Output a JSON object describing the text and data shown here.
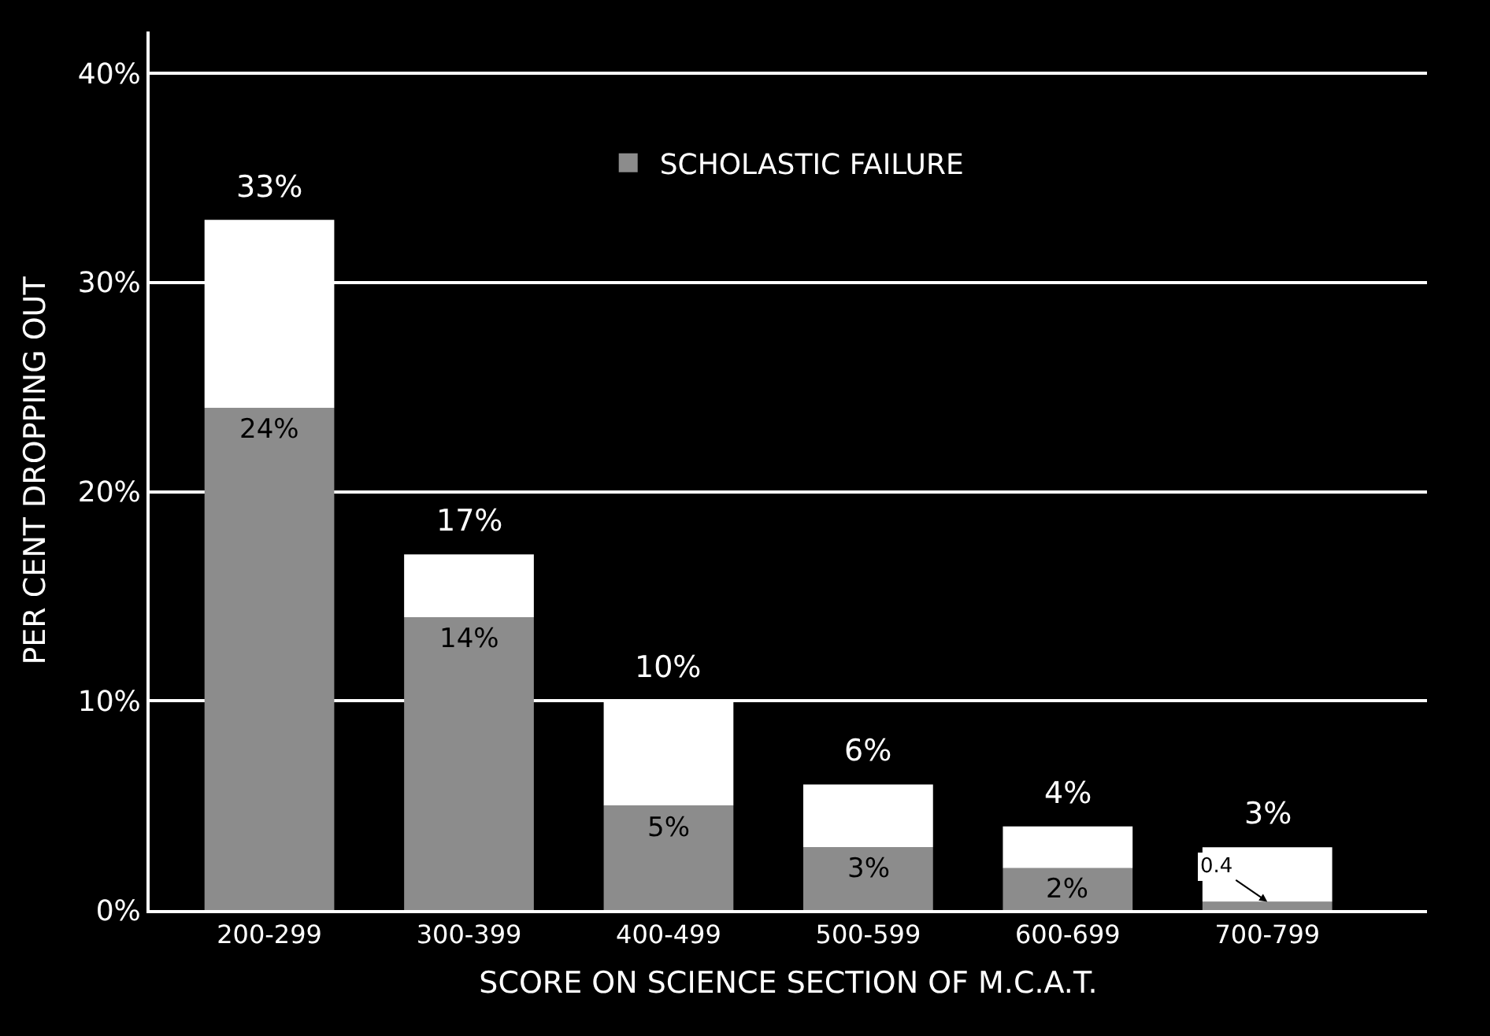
{
  "chart_data": {
    "type": "bar",
    "stacked": true,
    "xlabel": "SCORE ON SCIENCE SECTION OF M.C.A.T.",
    "ylabel": "PER CENT DROPPING OUT",
    "categories": [
      "200-299",
      "300-399",
      "400-499",
      "500-599",
      "600-699",
      "700-799"
    ],
    "series": [
      {
        "name": "SCHOLASTIC FAILURE",
        "color": "#8c8c8c",
        "values": [
          24,
          14,
          5,
          3,
          2,
          0.4
        ],
        "value_labels": [
          "24%",
          "14%",
          "5%",
          "3%",
          "2%",
          "0.4"
        ]
      },
      {
        "color": "#ffffff",
        "values": [
          9,
          3,
          5,
          3,
          2,
          2.6
        ]
      }
    ],
    "totals": [
      "33%",
      "17%",
      "10%",
      "6%",
      "4%",
      "3%"
    ],
    "ylim": [
      0,
      42
    ],
    "yticks": [
      {
        "value": 0,
        "label": "0%"
      },
      {
        "value": 10,
        "label": "10%"
      },
      {
        "value": 20,
        "label": "20%"
      },
      {
        "value": 30,
        "label": "30%"
      },
      {
        "value": 40,
        "label": "40%"
      }
    ],
    "grid": "y",
    "legend": "top"
  }
}
